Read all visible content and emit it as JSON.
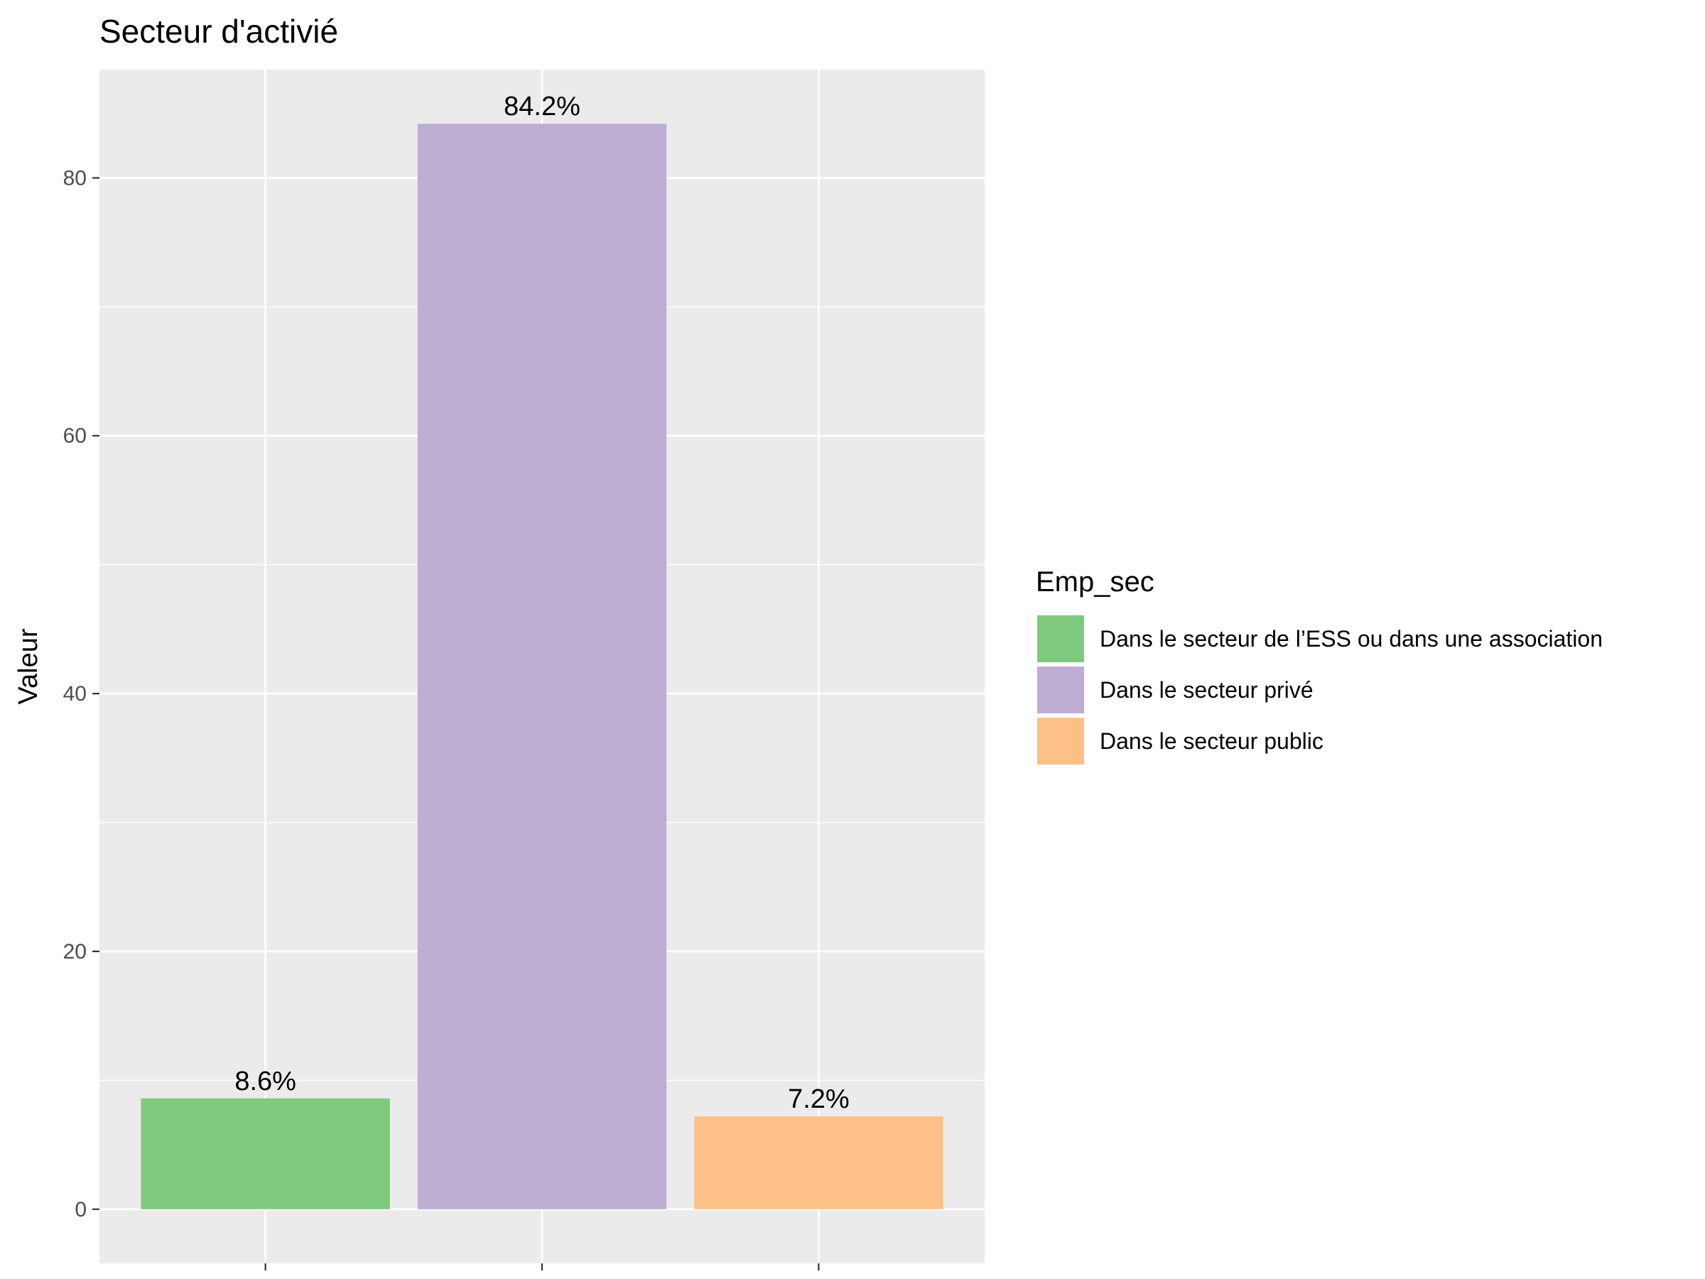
{
  "chart_data": {
    "type": "bar",
    "title": "Secteur d'activié",
    "xlabel": "",
    "ylabel": "Valeur",
    "ylim": [
      -4.2,
      88.4
    ],
    "yticks": [
      0,
      20,
      40,
      60,
      80
    ],
    "grid": true,
    "legend_position": "right",
    "legend_title": "Emp_sec",
    "categories": [
      "Dans le secteur de l’ESS ou dans une association",
      "Dans le secteur privé",
      "Dans le secteur public"
    ],
    "values": [
      8.6,
      84.2,
      7.2
    ],
    "data_labels": [
      "8.6%",
      "84.2%",
      "7.2%"
    ],
    "colors": [
      "#7fc97f",
      "#beaed4",
      "#fdc086"
    ]
  }
}
